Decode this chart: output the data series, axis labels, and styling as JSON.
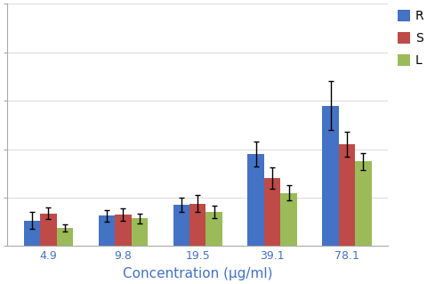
{
  "categories": [
    "4.9",
    "9.8",
    "19.5",
    "39.1",
    "78.1"
  ],
  "series": {
    "R": {
      "values": [
        10.5,
        12.5,
        17.0,
        38.0,
        58.0
      ],
      "errors": [
        3.5,
        2.5,
        3.0,
        5.0,
        10.0
      ],
      "color": "#4472C4"
    },
    "S": {
      "values": [
        13.5,
        13.0,
        17.5,
        28.0,
        42.0
      ],
      "errors": [
        2.5,
        2.5,
        3.5,
        4.5,
        5.0
      ],
      "color": "#BE4B48"
    },
    "L": {
      "values": [
        7.5,
        11.5,
        14.0,
        22.0,
        35.0
      ],
      "errors": [
        1.5,
        2.0,
        2.5,
        3.0,
        3.5
      ],
      "color": "#9BBB59"
    }
  },
  "xlabel": "Concentration (μg/ml)",
  "ylim": [
    0,
    100
  ],
  "yticks": [
    0,
    20,
    40,
    60,
    80,
    100
  ],
  "bar_width": 0.22,
  "legend_labels": [
    "R",
    "S",
    "L"
  ],
  "background_color": "#FFFFFF",
  "axis_color": "#AAAAAA",
  "text_color": "#4472C4",
  "xlabel_fontsize": 11,
  "tick_fontsize": 9,
  "legend_fontsize": 10
}
